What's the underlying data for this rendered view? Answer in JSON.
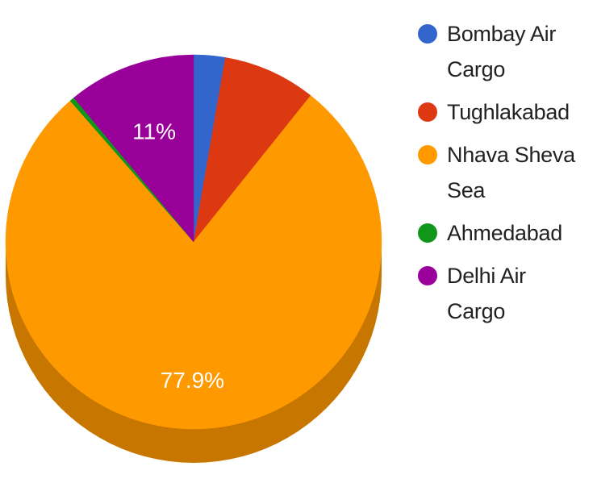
{
  "chart_data": {
    "type": "pie",
    "style": "3d",
    "legend_position": "right",
    "series": [
      {
        "name": "Bombay Air Cargo",
        "label": "Bombay Air\nCargo",
        "value": 2.7,
        "color": "#3366cc"
      },
      {
        "name": "Tughlakabad",
        "label": "Tughlakabad",
        "value": 8.0,
        "color": "#dc3912"
      },
      {
        "name": "Nhava Sheva Sea",
        "label": "Nhava Sheva\nSea",
        "value": 77.9,
        "color": "#ff9900",
        "data_label": "77.9%"
      },
      {
        "name": "Ahmedabad",
        "label": "Ahmedabad",
        "value": 0.4,
        "color": "#109618"
      },
      {
        "name": "Delhi Air Cargo",
        "label": "Delhi Air\nCargo",
        "value": 11.0,
        "color": "#990099",
        "data_label": "11%"
      }
    ]
  }
}
